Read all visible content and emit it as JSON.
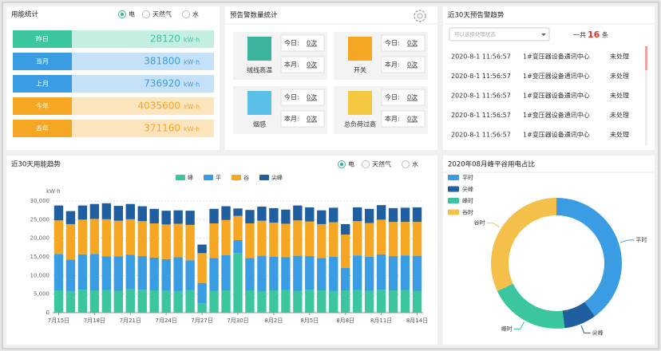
{
  "energy_stats": {
    "title": "用能统计",
    "options": [
      "电",
      "天然气",
      "水"
    ],
    "unit": "kW·h",
    "rows": [
      {
        "label": "昨日",
        "value": 28120,
        "color": "#3cc6a0"
      },
      {
        "label": "当月",
        "value": 381800,
        "color": "#3a9de3"
      },
      {
        "label": "上月",
        "value": 736920,
        "color": "#3a9de3"
      },
      {
        "label": "今年",
        "value": 4035600,
        "color": "#f5a623"
      },
      {
        "label": "去年",
        "value": 371160,
        "color": "#f5a623"
      }
    ]
  },
  "alarm_stats": {
    "title": "预告警数量统计",
    "today_label": "今日:",
    "month_label": "本月:",
    "items": [
      {
        "name": "绒线高温",
        "today": "0次",
        "month": "0次",
        "color": "#3cb39c"
      },
      {
        "name": "开关",
        "today": "0次",
        "month": "0次",
        "color": "#f5a623"
      },
      {
        "name": "烟感",
        "today": "0次",
        "month": "0次",
        "color": "#5bc0e8"
      },
      {
        "name": "总负荷过高",
        "today": "0次",
        "month": "0次",
        "color": "#f5c842"
      }
    ]
  },
  "alarm_trend": {
    "title": "近30天预告警趋势",
    "select_placeholder": "可以选择处理状态",
    "total_prefix": "一共",
    "total": 16,
    "total_suffix": "条",
    "rows": [
      [
        "2020-8-1 11:56:57",
        "1#变压器设备通讯中心",
        "未处理"
      ],
      [
        "2020-8-1 11:56:57",
        "1#变压器设备通讯中心",
        "未处理"
      ],
      [
        "2020-8-1 11:56:57",
        "1#变压器设备通讯中心",
        "未处理"
      ],
      [
        "2020-8-1 11:56:57",
        "1#变压器设备通讯中心",
        "未处理"
      ],
      [
        "2020-8-1 11:56:57",
        "1#变压器设备通讯中心",
        "未处理"
      ]
    ]
  },
  "trend_options": [
    "电",
    "天然气",
    "水"
  ],
  "chart_data": [
    {
      "type": "stacked_bar",
      "title": "近30天用能趋势",
      "y_label": "kW·h",
      "categories": [
        "7月15日",
        null,
        null,
        "7月18日",
        null,
        null,
        "7月21日",
        null,
        null,
        "7月24日",
        null,
        null,
        "7月27日",
        null,
        null,
        "7月30日",
        null,
        null,
        "8月2日",
        null,
        null,
        "8月5日",
        null,
        null,
        "8月8日",
        null,
        null,
        "8月11日",
        null,
        null,
        "8月14日"
      ],
      "series": [
        {
          "name": "峰",
          "color": "#3cc6a0",
          "values": [
            6000,
            5800,
            6200,
            6000,
            6100,
            5900,
            6300,
            6200,
            6000,
            5900,
            5800,
            6100,
            2500,
            5900,
            6000,
            16000,
            6000,
            5800,
            6000,
            6100,
            5900,
            6200,
            6000,
            5800,
            6000,
            6100,
            5900,
            6200,
            6000,
            6100,
            5900
          ]
        },
        {
          "name": "平",
          "color": "#3a9de3",
          "values": [
            9800,
            8500,
            9500,
            9800,
            9000,
            9200,
            9300,
            9000,
            8800,
            8500,
            9100,
            8000,
            5500,
            8800,
            9500,
            3500,
            8700,
            9500,
            9000,
            8800,
            9400,
            9000,
            8700,
            9200,
            6000,
            9300,
            9100,
            9500,
            9200,
            9300,
            9400
          ]
        },
        {
          "name": "谷",
          "color": "#f5a623",
          "values": [
            9000,
            9500,
            9300,
            9400,
            10000,
            9600,
            9500,
            9400,
            9200,
            9300,
            9000,
            9500,
            8000,
            9300,
            9400,
            6500,
            9300,
            9400,
            9200,
            9000,
            9500,
            9300,
            9100,
            9300,
            9000,
            9200,
            9100,
            9300,
            9200,
            9000,
            9100
          ]
        },
        {
          "name": "尖峰",
          "color": "#1f5fa0",
          "values": [
            4000,
            3500,
            3800,
            4000,
            4300,
            4000,
            4100,
            4000,
            3900,
            3700,
            3600,
            3800,
            2300,
            3900,
            3700,
            2000,
            3600,
            3800,
            3900,
            3800,
            4000,
            3800,
            3700,
            3900,
            2800,
            3700,
            3800,
            3900,
            3700,
            3800,
            3900
          ]
        }
      ],
      "ylim": [
        0,
        30000
      ],
      "yticks": [
        0,
        {
          "value": 5000,
          "label": "5,000"
        },
        {
          "value": 10000,
          "label": "10,000"
        },
        {
          "value": 15000,
          "label": "15,000"
        },
        {
          "value": 20000,
          "label": "20,000"
        },
        {
          "value": 25000,
          "label": "25,000"
        },
        {
          "value": 30000,
          "label": "30,000"
        }
      ],
      "grid": true
    },
    {
      "type": "donut",
      "title": "2020年08月峰平谷用电占比",
      "categories": [
        "平时",
        "尖峰",
        "峰时",
        "谷时"
      ],
      "values": [
        40,
        8,
        20,
        32
      ],
      "colors": [
        "#3a9de3",
        "#1f5fa0",
        "#3cc6a0",
        "#f5c04a"
      ]
    }
  ]
}
